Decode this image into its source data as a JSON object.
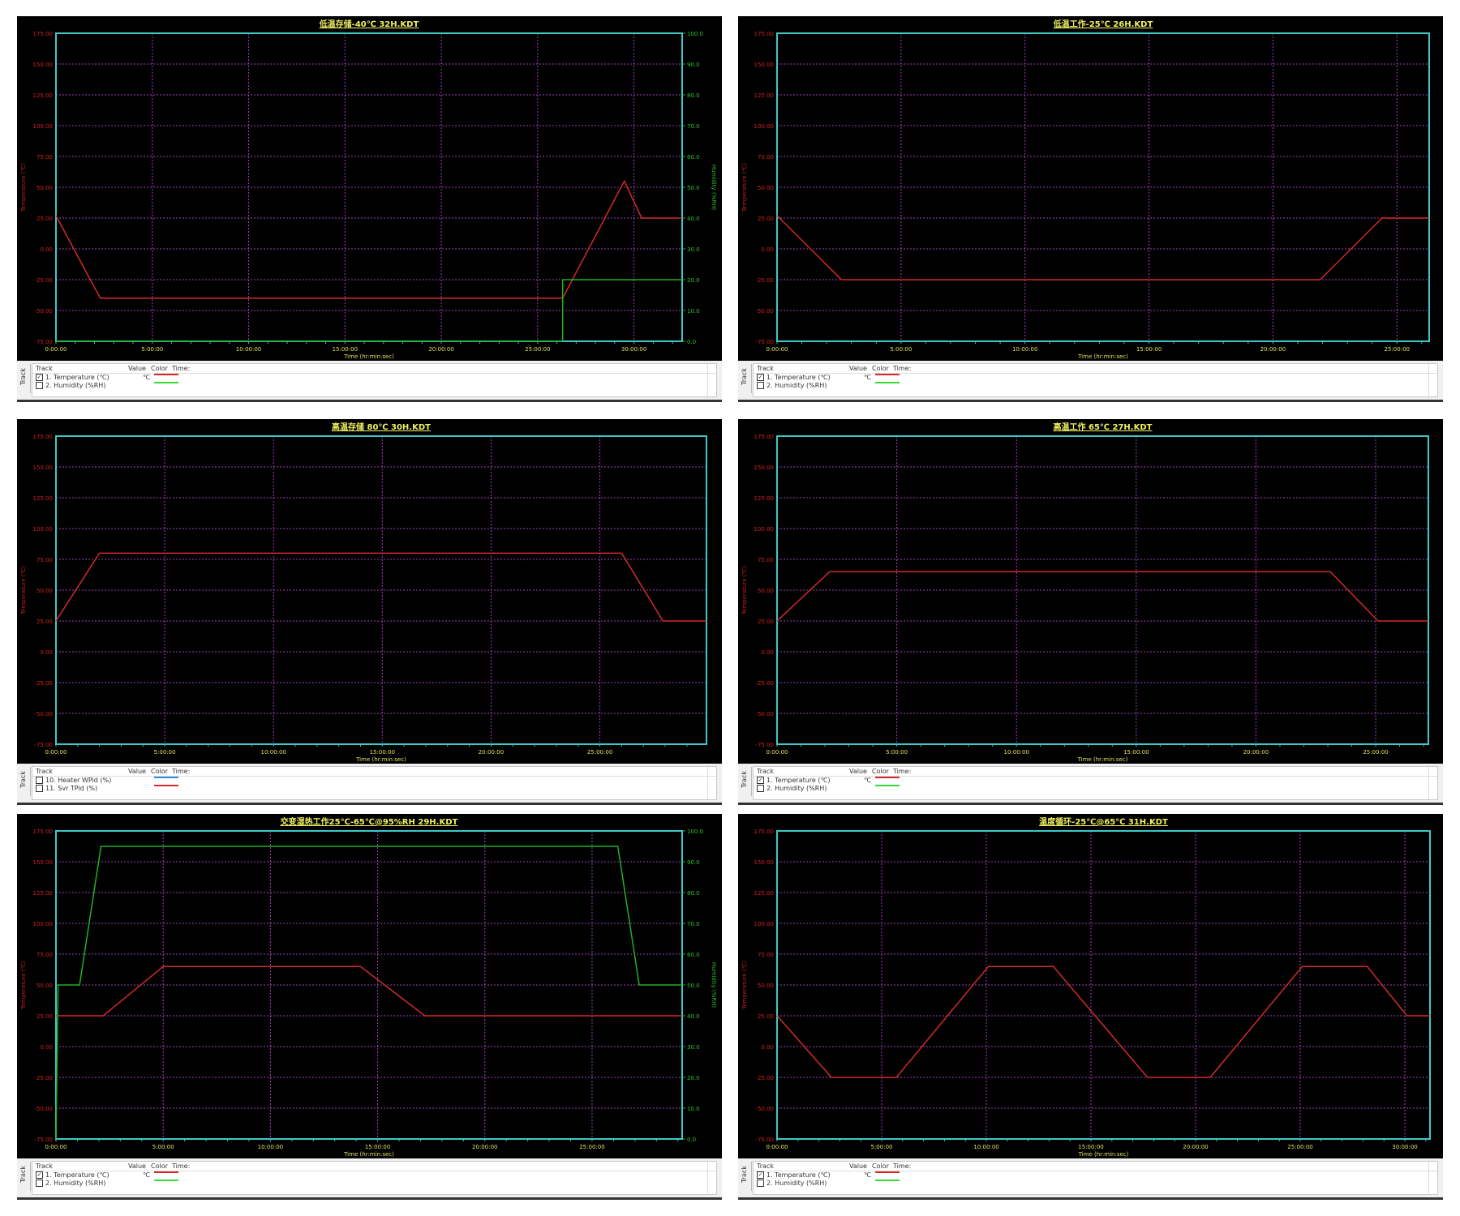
{
  "chart_data": [
    {
      "type": "line",
      "title": "低温存储-40℃ 32H.KDT",
      "xlabel": "Time (hr:min:sec)",
      "ylabel": "Temperature (℃)",
      "y2label": "Humidity (%RH)",
      "xlim": [
        "0:00:00",
        "32:30:00"
      ],
      "ylim": [
        -75,
        175
      ],
      "y2lim": [
        0,
        100
      ],
      "grid": true,
      "xticks": [
        "0:00:00",
        "5:00:00",
        "10:00:00",
        "15:00:00",
        "20:00:00",
        "25:00:00",
        "30:00:00"
      ],
      "yticks": [
        "175.00",
        "150.00",
        "125.00",
        "100.00",
        "75.00",
        "50.00",
        "25.00",
        "0.00",
        "-25.00",
        "-50.00",
        "-75.00"
      ],
      "y2ticks": [
        "100.0",
        "90.0",
        "80.0",
        "70.0",
        "60.0",
        "50.0",
        "40.0",
        "30.0",
        "20.0",
        "10.0",
        "0.0"
      ],
      "series": [
        {
          "name": "1. Temperature (℃)",
          "axis": "left",
          "color": "#d42a2a",
          "points": [
            [
              "0:00:00",
              27
            ],
            [
              "2:18:00",
              -40
            ],
            [
              "26:18:00",
              -40
            ],
            [
              "29:30:00",
              55
            ],
            [
              "30:24:00",
              25
            ],
            [
              "32:30:00",
              25
            ]
          ]
        },
        {
          "name": "2. Humidity (%RH)",
          "axis": "right",
          "color": "#22b022",
          "points": [
            [
              "0:00:00",
              0
            ],
            [
              "26:18:00",
              0
            ],
            [
              "26:18:00",
              20
            ],
            [
              "32:30:00",
              20
            ]
          ]
        }
      ],
      "track_panel": {
        "tab": "Track",
        "headers": [
          "Track",
          "Value",
          "Color",
          "Time:"
        ],
        "rows": [
          {
            "label": "1. Temperature (℃)",
            "checked": true,
            "value": "℃",
            "color": "#d42a2a"
          },
          {
            "label": "2. Humidity (%RH)",
            "checked": false,
            "value": "",
            "color": "#33dd33"
          }
        ]
      }
    },
    {
      "type": "line",
      "title": "低温工作-25℃ 26H.KDT",
      "xlabel": "Time (hr:min:sec)",
      "ylabel": "Temperature (℃)",
      "xlim": [
        "0:00:00",
        "26:18:00"
      ],
      "ylim": [
        -75,
        175
      ],
      "grid": true,
      "xticks": [
        "0:00:00",
        "5:00:00",
        "10:00:00",
        "15:00:00",
        "20:00:00",
        "25:00:00"
      ],
      "yticks": [
        "175.00",
        "150.00",
        "125.00",
        "100.00",
        "75.00",
        "50.00",
        "25.00",
        "0.00",
        "-25.00",
        "-50.00",
        "-75.00"
      ],
      "series": [
        {
          "name": "1. Temperature (℃)",
          "axis": "left",
          "color": "#d42a2a",
          "points": [
            [
              "0:00:00",
              27
            ],
            [
              "2:36:00",
              -25
            ],
            [
              "21:54:00",
              -25
            ],
            [
              "24:24:00",
              25
            ],
            [
              "26:18:00",
              25
            ]
          ]
        }
      ],
      "track_panel": {
        "tab": "Track",
        "headers": [
          "Track",
          "Value",
          "Color",
          "Time:"
        ],
        "rows": [
          {
            "label": "1. Temperature (℃)",
            "checked": true,
            "value": "℃",
            "color": "#d42a2a"
          },
          {
            "label": "2. Humidity (%RH)",
            "checked": false,
            "value": "",
            "color": "#33dd33"
          }
        ]
      }
    },
    {
      "type": "line",
      "title": "高温存储 80℃ 30H.KDT",
      "xlabel": "Time (hr:min:sec)",
      "ylabel": "Temperature (℃)",
      "xlim": [
        "0:00:00",
        "29:54:00"
      ],
      "ylim": [
        -75,
        175
      ],
      "grid": true,
      "xticks": [
        "0:00:00",
        "5:00:00",
        "10:00:00",
        "15:00:00",
        "20:00:00",
        "25:00:00"
      ],
      "yticks": [
        "175.00",
        "150.00",
        "125.00",
        "100.00",
        "75.00",
        "50.00",
        "25.00",
        "0.00",
        "-25.00",
        "-50.00",
        "-75.00"
      ],
      "series": [
        {
          "name": "Temperature",
          "axis": "left",
          "color": "#d42a2a",
          "points": [
            [
              "0:00:00",
              25
            ],
            [
              "2:00:00",
              80
            ],
            [
              "26:00:00",
              80
            ],
            [
              "27:54:00",
              25
            ],
            [
              "29:54:00",
              25
            ]
          ]
        }
      ],
      "track_panel": {
        "tab": "Track",
        "headers": [
          "Track",
          "Value",
          "Color",
          "Time:"
        ],
        "rows": [
          {
            "label": "10. Heater WPid (%)",
            "checked": false,
            "value": "",
            "color": "#2f8fe0"
          },
          {
            "label": "11. Svr TPid (%)",
            "checked": false,
            "value": "",
            "color": "#d42a2a"
          }
        ]
      }
    },
    {
      "type": "line",
      "title": "高温工作 65℃ 27H.KDT",
      "xlabel": "Time (hr:min:sec)",
      "ylabel": "Temperature (℃)",
      "xlim": [
        "0:00:00",
        "27:12:00"
      ],
      "ylim": [
        -75,
        175
      ],
      "grid": true,
      "xticks": [
        "0:00:00",
        "5:00:00",
        "10:00:00",
        "15:00:00",
        "20:00:00",
        "25:00:00"
      ],
      "yticks": [
        "175.00",
        "150.00",
        "125.00",
        "100.00",
        "75.00",
        "50.00",
        "25.00",
        "0.00",
        "-25.00",
        "-50.00",
        "-75.00"
      ],
      "series": [
        {
          "name": "1. Temperature (℃)",
          "axis": "left",
          "color": "#d42a2a",
          "points": [
            [
              "0:00:00",
              25
            ],
            [
              "2:12:00",
              65
            ],
            [
              "23:06:00",
              65
            ],
            [
              "25:06:00",
              25
            ],
            [
              "27:12:00",
              25
            ]
          ]
        }
      ],
      "track_panel": {
        "tab": "Track",
        "headers": [
          "Track",
          "Value",
          "Color",
          "Time:"
        ],
        "rows": [
          {
            "label": "1. Temperature (℃)",
            "checked": true,
            "value": "℃",
            "color": "#d42a2a"
          },
          {
            "label": "2. Humidity (%RH)",
            "checked": false,
            "value": "",
            "color": "#33dd33"
          }
        ]
      }
    },
    {
      "type": "line",
      "title": "交变湿热工作25℃-65℃@95%RH 29H.KDT",
      "xlabel": "Time (hr:min:sec)",
      "ylabel": "Temperature (℃)",
      "y2label": "Humidity (%RH)",
      "xlim": [
        "0:00:00",
        "29:12:00"
      ],
      "ylim": [
        -75,
        175
      ],
      "y2lim": [
        0,
        100
      ],
      "grid": true,
      "xticks": [
        "0:00:00",
        "5:00:00",
        "10:00:00",
        "15:00:00",
        "20:00:00",
        "25:00:00"
      ],
      "yticks": [
        "175.00",
        "150.00",
        "125.00",
        "100.00",
        "75.00",
        "50.00",
        "25.00",
        "0.00",
        "-25.00",
        "-50.00",
        "-75.00"
      ],
      "y2ticks": [
        "100.0",
        "90.0",
        "80.0",
        "70.0",
        "60.0",
        "50.0",
        "40.0",
        "30.0",
        "20.0",
        "10.0",
        "0.0"
      ],
      "series": [
        {
          "name": "1. Temperature (℃)",
          "axis": "left",
          "color": "#d42a2a",
          "points": [
            [
              "0:00:00",
              25
            ],
            [
              "2:12:00",
              25
            ],
            [
              "5:00:00",
              65
            ],
            [
              "14:12:00",
              65
            ],
            [
              "17:12:00",
              25
            ],
            [
              "29:12:00",
              25
            ]
          ]
        },
        {
          "name": "2. Humidity (%RH)",
          "axis": "right",
          "color": "#22b022",
          "points": [
            [
              "0:00:00",
              0
            ],
            [
              "0:06:00",
              50
            ],
            [
              "1:06:00",
              50
            ],
            [
              "2:06:00",
              95
            ],
            [
              "26:12:00",
              95
            ],
            [
              "27:12:00",
              50
            ],
            [
              "29:12:00",
              50
            ]
          ]
        }
      ],
      "track_panel": {
        "tab": "Track",
        "headers": [
          "Track",
          "Value",
          "Color",
          "Time:"
        ],
        "rows": [
          {
            "label": "1. Temperature (℃)",
            "checked": true,
            "value": "℃",
            "color": "#d42a2a"
          },
          {
            "label": "2. Humidity (%RH)",
            "checked": false,
            "value": "",
            "color": "#33dd33"
          }
        ]
      }
    },
    {
      "type": "line",
      "title": "温度循环-25℃@65℃ 31H.KDT",
      "xlabel": "Time (hr:min:sec)",
      "ylabel": "Temperature (℃)",
      "xlim": [
        "0:00:00",
        "31:12:00"
      ],
      "ylim": [
        -75,
        175
      ],
      "grid": true,
      "xticks": [
        "0:00:00",
        "5:00:00",
        "10:00:00",
        "15:00:00",
        "20:00:00",
        "25:00:00",
        "30:00:00"
      ],
      "yticks": [
        "175.00",
        "150.00",
        "125.00",
        "100.00",
        "75.00",
        "50.00",
        "25.00",
        "0.00",
        "-25.00",
        "-50.00",
        "-75.00"
      ],
      "series": [
        {
          "name": "1. Temperature (℃)",
          "axis": "left",
          "color": "#d42a2a",
          "points": [
            [
              "0:00:00",
              25
            ],
            [
              "2:36:00",
              -25
            ],
            [
              "5:42:00",
              -25
            ],
            [
              "10:06:00",
              65
            ],
            [
              "13:12:00",
              65
            ],
            [
              "17:42:00",
              -25
            ],
            [
              "20:42:00",
              -25
            ],
            [
              "25:06:00",
              65
            ],
            [
              "28:12:00",
              65
            ],
            [
              "30:06:00",
              25
            ],
            [
              "31:12:00",
              25
            ]
          ]
        }
      ],
      "track_panel": {
        "tab": "Track",
        "headers": [
          "Track",
          "Value",
          "Color",
          "Time:"
        ],
        "rows": [
          {
            "label": "1. Temperature (℃)",
            "checked": true,
            "value": "℃",
            "color": "#d42a2a"
          },
          {
            "label": "2. Humidity (%RH)",
            "checked": false,
            "value": "",
            "color": "#33dd33"
          }
        ]
      }
    }
  ]
}
